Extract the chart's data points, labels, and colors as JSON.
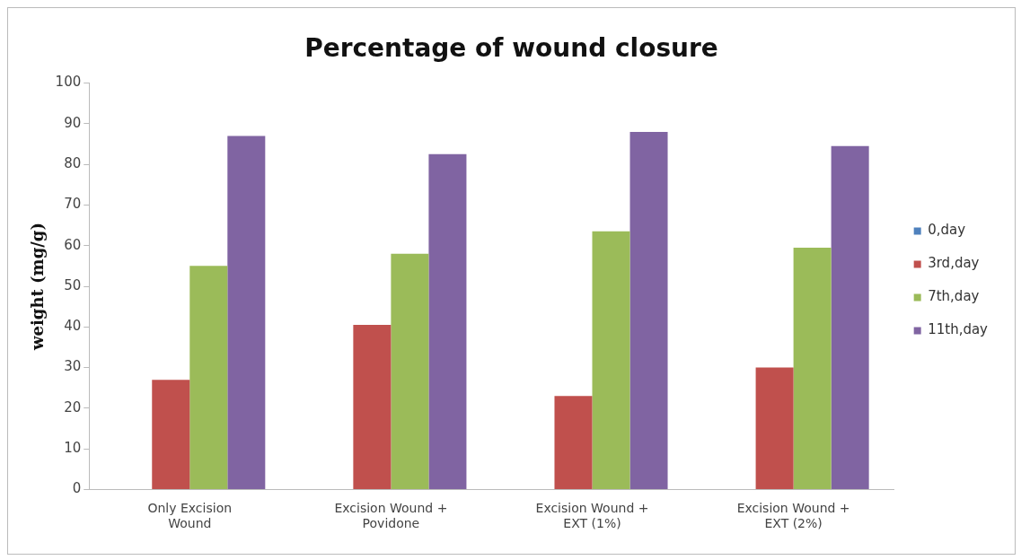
{
  "chart_data": {
    "type": "bar",
    "title": "Percentage of wound closure",
    "ylabel": "weight (mg/g)",
    "categories": [
      "Only Excision Wound",
      "Excision Wound + Povidone",
      "Excision Wound + EXT (1%)",
      "Excision Wound + EXT (2%)"
    ],
    "series": [
      {
        "name": "0,day",
        "color": "#4f81bd",
        "values": [
          0,
          0,
          0,
          0
        ]
      },
      {
        "name": "3rd,day",
        "color": "#c0504d",
        "values": [
          27,
          40.5,
          23,
          30
        ]
      },
      {
        "name": "7th,day",
        "color": "#9bbb59",
        "values": [
          55,
          58,
          63.5,
          59.5
        ]
      },
      {
        "name": "11th,day",
        "color": "#8064a2",
        "values": [
          87,
          82.5,
          88,
          84.5
        ]
      }
    ],
    "ylim": [
      0,
      100
    ],
    "yticks": [
      0,
      10,
      20,
      30,
      40,
      50,
      60,
      70,
      80,
      90,
      100
    ],
    "grid": false,
    "legend": "right"
  }
}
